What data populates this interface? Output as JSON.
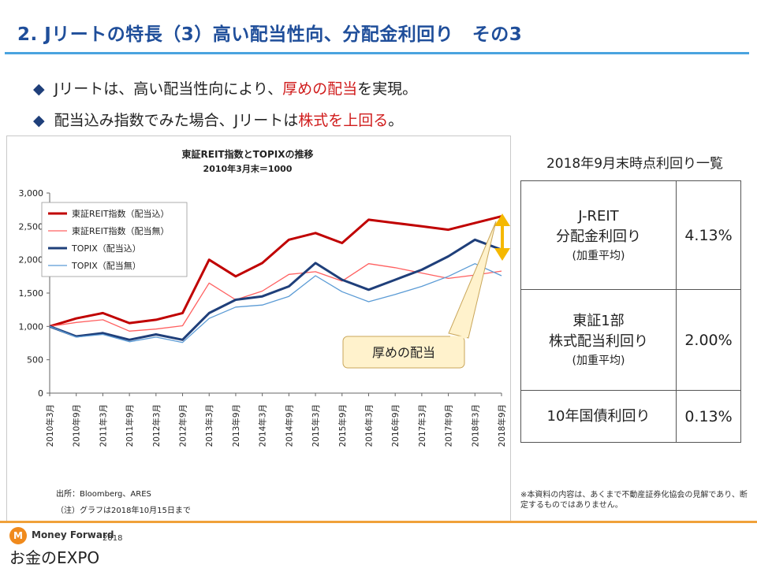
{
  "slide": {
    "title": "2. Jリートの特長（3）高い配当性向、分配金利回り　その3",
    "bullets": [
      {
        "pre": "Jリートは、高い配当性向により、",
        "hl": "厚めの配当",
        "post": "を実現。"
      },
      {
        "pre": "配当込み指数でみた場合、Jリートは",
        "hl": "株式を上回る",
        "post": "。"
      }
    ],
    "bullet_marker": "◆"
  },
  "chart_data": {
    "type": "line",
    "title": "東証REIT指数とTOPIXの推移",
    "subtitle": "2010年3月末＝1000",
    "xlabel": "",
    "ylabel": "",
    "ylim": [
      0,
      3000
    ],
    "yticks": [
      "3,000",
      "2,500",
      "2,000",
      "1,500",
      "1,000",
      "500",
      "0"
    ],
    "ytick_values": [
      3000,
      2500,
      2000,
      1500,
      1000,
      500,
      0
    ],
    "categories": [
      "2010年3月",
      "2010年9月",
      "2011年3月",
      "2011年9月",
      "2012年3月",
      "2012年9月",
      "2013年3月",
      "2013年9月",
      "2014年3月",
      "2014年9月",
      "2015年3月",
      "2015年9月",
      "2016年3月",
      "2016年9月",
      "2017年3月",
      "2017年9月",
      "2018年3月",
      "2018年9月"
    ],
    "series": [
      {
        "name": "東証REIT指数（配当込）",
        "color": "#c00000",
        "width": 3,
        "values": [
          1000,
          1120,
          1200,
          1050,
          1100,
          1200,
          2000,
          1750,
          1950,
          2300,
          2400,
          2250,
          2600,
          2550,
          2500,
          2450,
          2550,
          2650
        ]
      },
      {
        "name": "東証REIT指数（配当無）",
        "color": "#ff6060",
        "width": 1.3,
        "values": [
          1000,
          1060,
          1100,
          930,
          960,
          1010,
          1650,
          1400,
          1530,
          1780,
          1820,
          1680,
          1940,
          1880,
          1800,
          1720,
          1770,
          1830
        ]
      },
      {
        "name": "TOPIX（配当込）",
        "color": "#1f3f7a",
        "width": 3,
        "values": [
          1000,
          850,
          900,
          800,
          880,
          800,
          1200,
          1400,
          1450,
          1600,
          1950,
          1700,
          1550,
          1700,
          1850,
          2050,
          2300,
          2150
        ]
      },
      {
        "name": "TOPIX（配当無）",
        "color": "#5b9bd5",
        "width": 1.3,
        "values": [
          1000,
          840,
          880,
          770,
          840,
          760,
          1120,
          1290,
          1320,
          1450,
          1760,
          1520,
          1370,
          1480,
          1600,
          1750,
          1940,
          1760
        ]
      }
    ],
    "legend_position": "top-left",
    "annotation": "厚めの配当",
    "source": "出所：Bloomberg、ARES",
    "note": "（注）グラフは2018年10月15日まで"
  },
  "yield_table": {
    "title": "2018年9月末時点利回り一覧",
    "rows": [
      {
        "line1": "J-REIT",
        "line2": "分配金利回り",
        "line3": "(加重平均)",
        "value": "4.13%"
      },
      {
        "line1": "東証1部",
        "line2": "株式配当利回り",
        "line3": "(加重平均)",
        "value": "2.00%"
      },
      {
        "line1": "10年国債利回り",
        "value": "0.13%"
      }
    ]
  },
  "disclaimer": "※本資料の内容は、あくまで不動産証券化協会の見解であり、断定するものではありません。",
  "footer": {
    "brand": "Money Forward",
    "year": "2018",
    "event": "お金のEXPO",
    "logo_glyph": "M"
  }
}
